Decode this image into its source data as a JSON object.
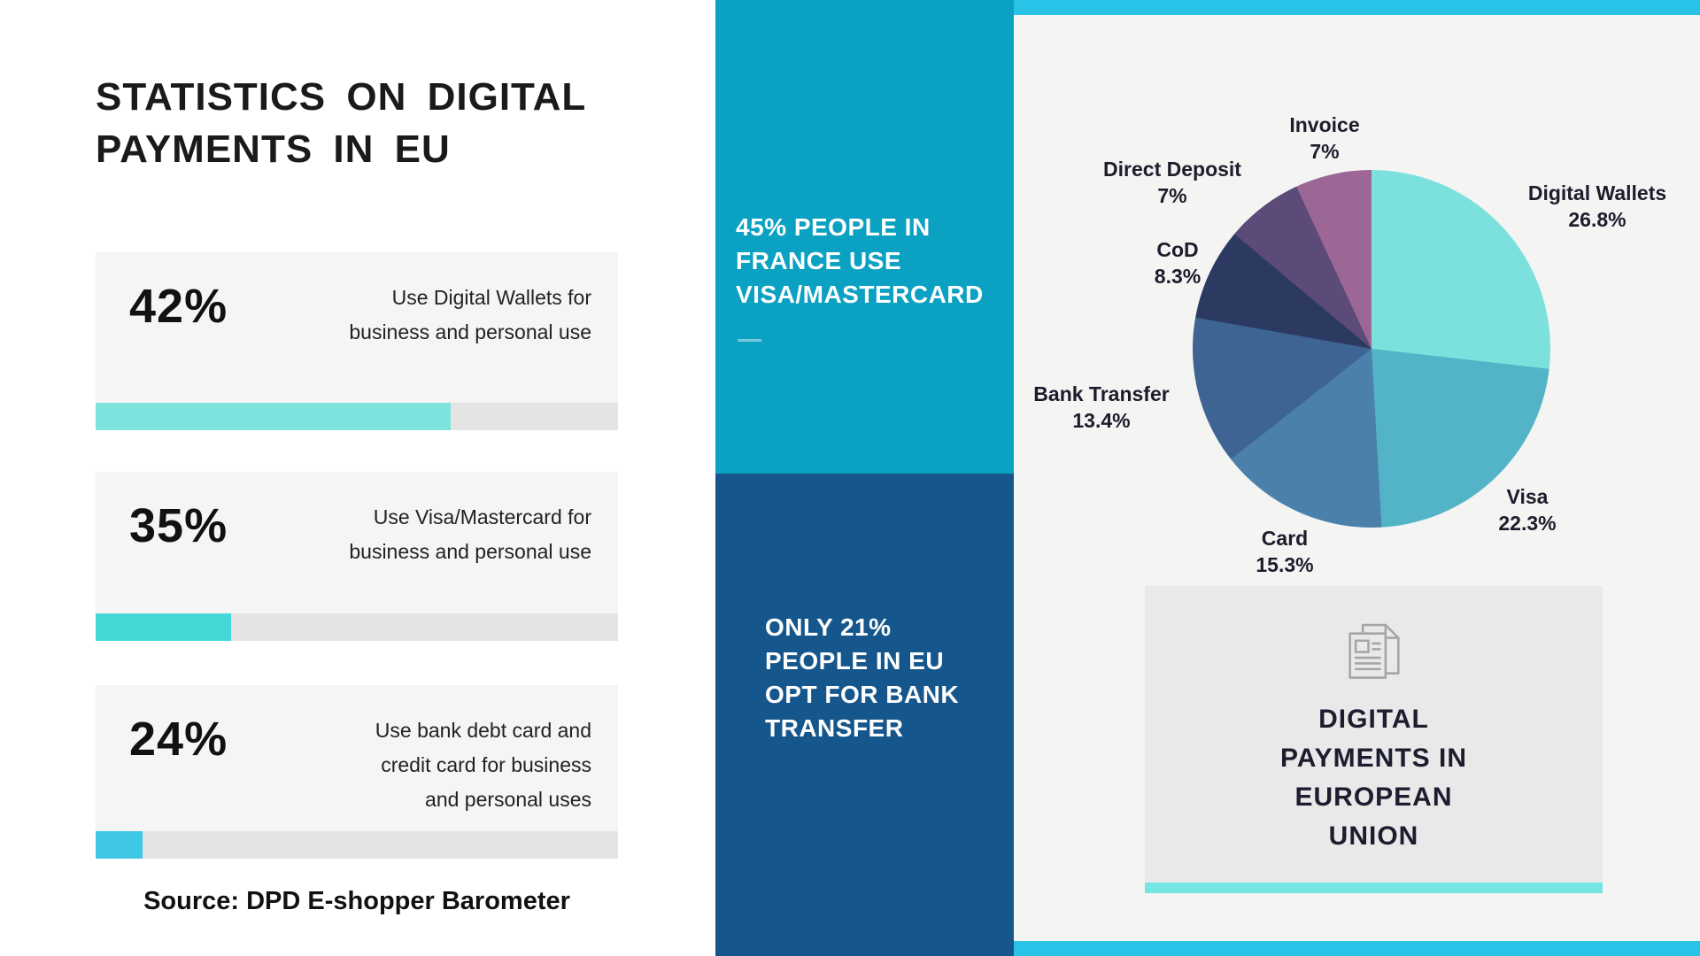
{
  "left": {
    "title": "STATISTICS ON DIGITAL\nPAYMENTS IN EU",
    "stats": [
      {
        "value": "42%",
        "description": "Use Digital Wallets for\nbusiness and personal use",
        "bar_fill_pct": 68,
        "bar_color": "#7de3dc"
      },
      {
        "value": "35%",
        "description": "Use Visa/Mastercard for\nbusiness and personal use",
        "bar_fill_pct": 26,
        "bar_color": "#43d8d6"
      },
      {
        "value": "24%",
        "description": "Use bank debt card and\ncredit card for business\nand personal uses",
        "bar_fill_pct": 9,
        "bar_color": "#3ec7e6"
      }
    ],
    "source": "Source: DPD E-shopper Barometer"
  },
  "middle": {
    "top_fact": "45% PEOPLE IN\nFRANCE USE\nVISA/MASTERCARD",
    "bottom_fact": "ONLY 21%\nPEOPLE IN EU\nOPT FOR BANK\nTRANSFER",
    "top_bg_color": "#0aa1c2",
    "bottom_bg_color": "#15568c"
  },
  "right": {
    "caption": "DIGITAL\nPAYMENTS IN\nEUROPEAN\nUNION",
    "accent_bar_color": "#2ac3e8",
    "card_accent_color": "#74e5e3"
  },
  "chart_data": [
    {
      "type": "bar",
      "title": "STATISTICS ON DIGITAL PAYMENTS IN EU",
      "categories": [
        "Use Digital Wallets for business and personal use",
        "Use Visa/Mastercard for business and personal use",
        "Use bank debt card and credit card for business and personal uses"
      ],
      "values": [
        42,
        35,
        24
      ],
      "unit": "%",
      "source": "DPD E-shopper Barometer"
    },
    {
      "type": "pie",
      "title": "DIGITAL PAYMENTS IN EUROPEAN UNION",
      "labels": [
        "Digital Wallets",
        "Visa",
        "Card",
        "Bank Transfer",
        "CoD",
        "Direct Deposit",
        "Invoice"
      ],
      "values": [
        26.8,
        22.3,
        15.3,
        13.4,
        8.3,
        7,
        7
      ],
      "colors": [
        "#7ce1dd",
        "#52b4c6",
        "#4a80aa",
        "#3e6494",
        "#2c3a62",
        "#5c4a78",
        "#9c6795"
      ],
      "start_angle_deg": 0,
      "direction": "clockwise",
      "legend_position": "inline-labels",
      "annotations": [
        "45% PEOPLE IN FRANCE USE VISA/MASTERCARD",
        "ONLY 21% PEOPLE IN EU OPT FOR BANK TRANSFER"
      ]
    }
  ]
}
